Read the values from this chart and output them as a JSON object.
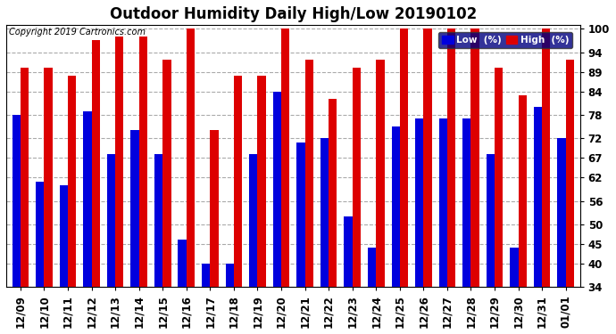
{
  "title": "Outdoor Humidity Daily High/Low 20190102",
  "copyright": "Copyright 2019 Cartronics.com",
  "dates": [
    "12/09",
    "12/10",
    "12/11",
    "12/12",
    "12/13",
    "12/14",
    "12/15",
    "12/16",
    "12/17",
    "12/18",
    "12/19",
    "12/20",
    "12/21",
    "12/22",
    "12/23",
    "12/24",
    "12/25",
    "12/26",
    "12/27",
    "12/28",
    "12/29",
    "12/30",
    "12/31",
    "01/01"
  ],
  "low_values": [
    78,
    61,
    60,
    79,
    68,
    74,
    68,
    46,
    40,
    40,
    68,
    84,
    71,
    72,
    52,
    44,
    75,
    77,
    77,
    77,
    68,
    44,
    80,
    72
  ],
  "high_values": [
    90,
    90,
    88,
    97,
    98,
    98,
    92,
    100,
    74,
    88,
    88,
    100,
    92,
    82,
    90,
    92,
    100,
    100,
    100,
    100,
    90,
    83,
    100,
    92
  ],
  "low_color": "#0000dd",
  "high_color": "#dd0000",
  "bg_color": "#ffffff",
  "plot_bg_color": "#ffffff",
  "grid_color": "#aaaaaa",
  "ylim_min": 34,
  "ylim_max": 101,
  "yticks": [
    34,
    40,
    45,
    50,
    56,
    62,
    67,
    72,
    78,
    84,
    89,
    94,
    100
  ],
  "bar_width": 0.35,
  "title_fontsize": 12,
  "tick_fontsize": 8.5,
  "legend_low_label": "Low  (%)",
  "legend_high_label": "High  (%)"
}
